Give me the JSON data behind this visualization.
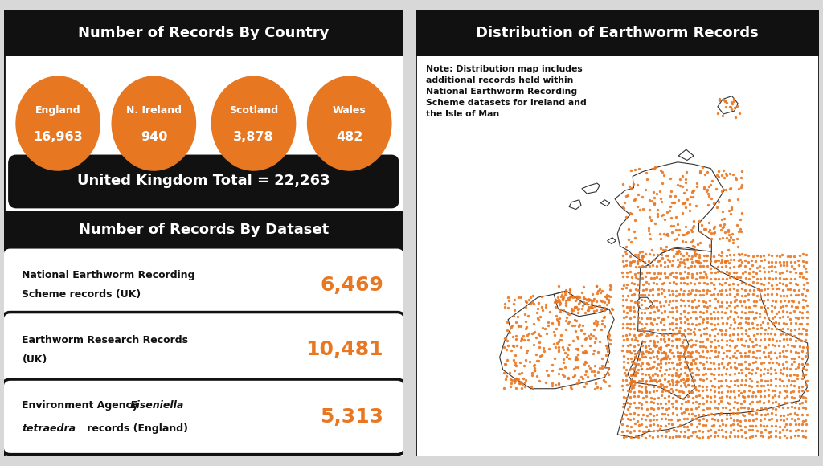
{
  "bg_color": "#d8d8d8",
  "panel_bg": "#ffffff",
  "orange": "#E87722",
  "black": "#111111",
  "white": "#ffffff",
  "left_title": "Number of Records By Country",
  "circles": [
    {
      "label": "England",
      "value": "16,963"
    },
    {
      "label": "N. Ireland",
      "value": "940"
    },
    {
      "label": "Scotland",
      "value": "3,878"
    },
    {
      "label": "Wales",
      "value": "482"
    }
  ],
  "uk_total_label": "United Kingdom Total = 22,263",
  "dataset_title": "Number of Records By Dataset",
  "datasets": [
    {
      "label1": "National Earthworm Recording",
      "label2": "Scheme records (UK)",
      "value": "6,469",
      "italic_word": ""
    },
    {
      "label1": "Earthworm Research Records",
      "label2": "(UK)",
      "value": "10,481",
      "italic_word": ""
    },
    {
      "label1": "Environment Agency",
      "label2": " records (England)",
      "value": "5,313",
      "italic_word": "Eiseniella\ntetraedra"
    }
  ],
  "right_title": "Distribution of Earthworm Records",
  "note_text": "Note: Distribution map includes\nadditional records held within\nNational Earthworm Recording\nScheme datasets for Ireland and\nthe Isle of Man",
  "lon_min": -10.8,
  "lon_max": 2.2,
  "lat_min": 49.5,
  "lat_max": 61.8
}
